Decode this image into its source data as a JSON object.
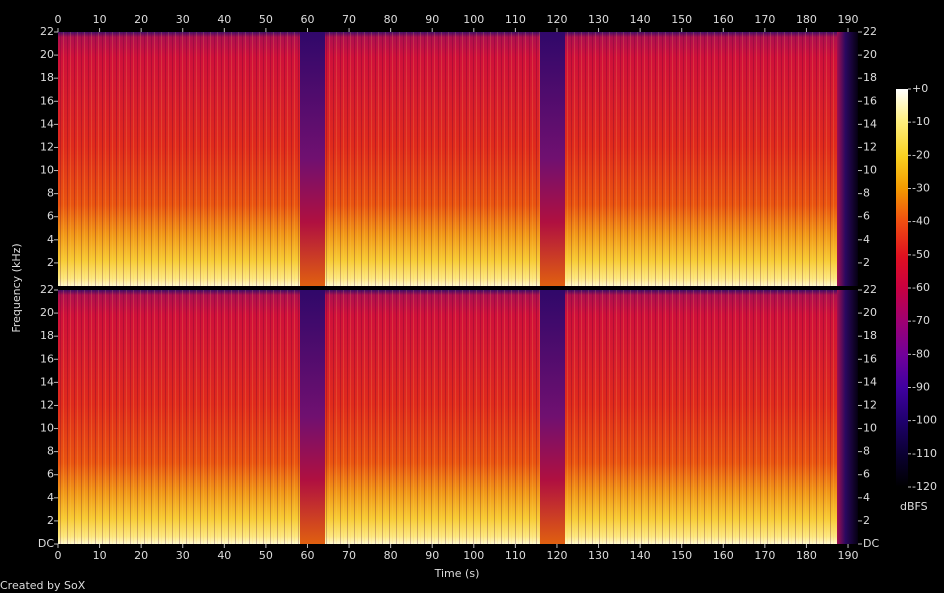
{
  "chart_data": {
    "type": "spectrogram",
    "xlabel": "Time (s)",
    "ylabel": "Frequency (kHz)",
    "footer": "Created by SoX",
    "xlim": [
      0,
      192.4
    ],
    "xticks": [
      0,
      10,
      20,
      30,
      40,
      50,
      60,
      70,
      80,
      90,
      100,
      110,
      120,
      130,
      140,
      150,
      160,
      170,
      180,
      190
    ],
    "ylim": [
      0,
      22
    ],
    "panels": [
      {
        "yticks": [
          2,
          4,
          6,
          8,
          10,
          12,
          14,
          16,
          18,
          20,
          22
        ]
      },
      {
        "yticks": [
          {
            "value": 0,
            "label": "DC"
          },
          2,
          4,
          6,
          8,
          10,
          12,
          14,
          16,
          18,
          20,
          22
        ]
      }
    ],
    "colorbar": {
      "label": "dBFS",
      "lim": [
        -120,
        0
      ],
      "ticks": [
        {
          "value": 0,
          "label": "+0"
        },
        -10,
        -20,
        -30,
        -40,
        -50,
        -60,
        -70,
        -80,
        -90,
        -100,
        -110,
        -120
      ]
    }
  }
}
